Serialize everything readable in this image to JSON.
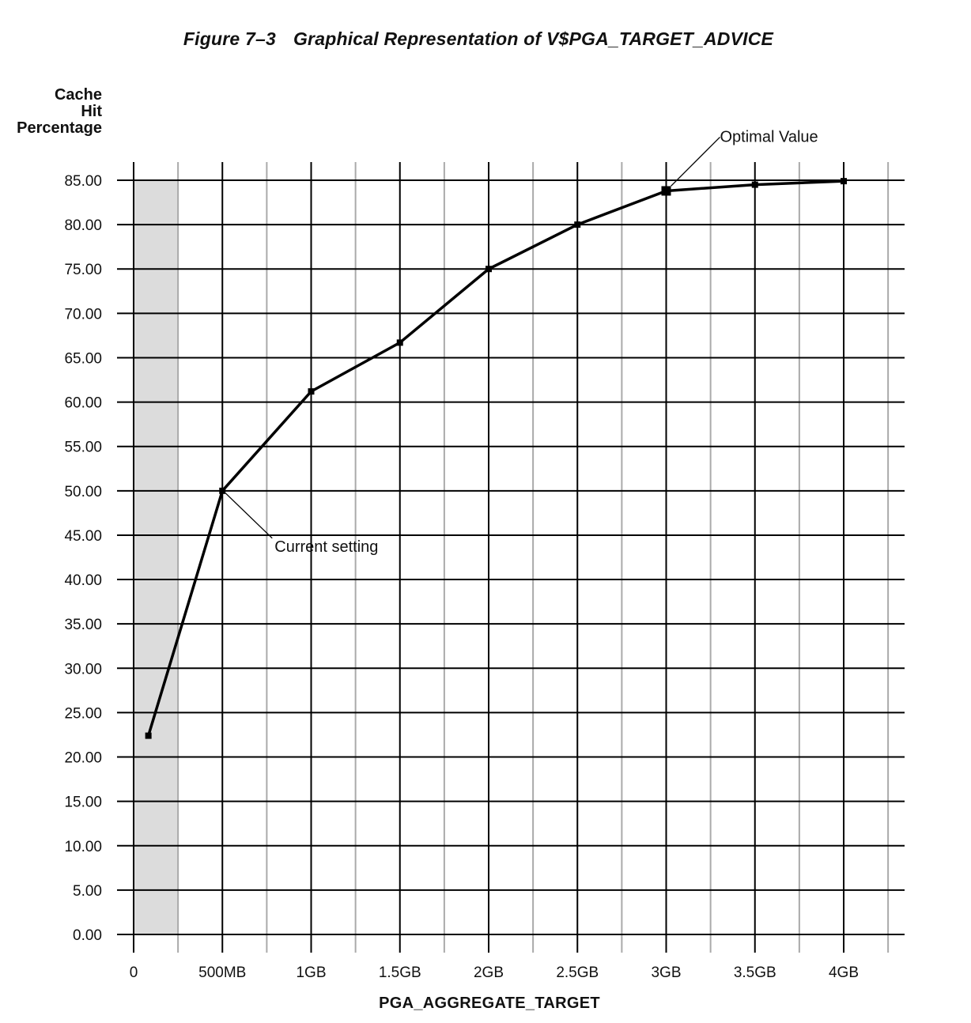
{
  "title": {
    "figure_number": "Figure 7–3",
    "text": "Graphical Representation of V$PGA_TARGET_ADVICE"
  },
  "colors": {
    "line": "#000000",
    "grid_major": "#000000",
    "grid_minor": "#aaaaaa",
    "shade": "#dcdcdc",
    "background": "#ffffff"
  },
  "chart_data": {
    "type": "line",
    "title": "Graphical Representation of V$PGA_TARGET_ADVICE",
    "ylabel_lines": [
      "Cache",
      "Hit",
      "Percentage"
    ],
    "xlabel": "PGA_AGGREGATE_TARGET",
    "x_unit": "MB",
    "xlim": [
      0,
      4300
    ],
    "ylim": [
      0,
      85
    ],
    "x_ticks": [
      {
        "value": 0,
        "label": "0"
      },
      {
        "value": 500,
        "label": "500MB"
      },
      {
        "value": 1000,
        "label": "1GB"
      },
      {
        "value": 1500,
        "label": "1.5GB"
      },
      {
        "value": 2000,
        "label": "2GB"
      },
      {
        "value": 2500,
        "label": "2.5GB"
      },
      {
        "value": 3000,
        "label": "3GB"
      },
      {
        "value": 3500,
        "label": "3.5GB"
      },
      {
        "value": 4000,
        "label": "4GB"
      }
    ],
    "x_minor_grid": [
      250,
      750,
      1250,
      1750,
      2250,
      2750,
      3250,
      3750,
      4250
    ],
    "y_ticks": [
      {
        "value": 0,
        "label": "0.00"
      },
      {
        "value": 5,
        "label": "5.00"
      },
      {
        "value": 10,
        "label": "10.00"
      },
      {
        "value": 15,
        "label": "15.00"
      },
      {
        "value": 20,
        "label": "20.00"
      },
      {
        "value": 25,
        "label": "25.00"
      },
      {
        "value": 30,
        "label": "30.00"
      },
      {
        "value": 35,
        "label": "35.00"
      },
      {
        "value": 40,
        "label": "40.00"
      },
      {
        "value": 45,
        "label": "45.00"
      },
      {
        "value": 50,
        "label": "50.00"
      },
      {
        "value": 55,
        "label": "55.00"
      },
      {
        "value": 60,
        "label": "60.00"
      },
      {
        "value": 65,
        "label": "65.00"
      },
      {
        "value": 70,
        "label": "70.00"
      },
      {
        "value": 75,
        "label": "75.00"
      },
      {
        "value": 80,
        "label": "80.00"
      },
      {
        "value": 85,
        "label": "85.00"
      }
    ],
    "grid": true,
    "shaded_region": {
      "x_from": 0,
      "x_to": 250
    },
    "series": [
      {
        "points": [
          {
            "x": 83,
            "y": 22.4
          },
          {
            "x": 500,
            "y": 50.0
          },
          {
            "x": 1000,
            "y": 61.2
          },
          {
            "x": 1500,
            "y": 66.7
          },
          {
            "x": 2000,
            "y": 75.0
          },
          {
            "x": 2500,
            "y": 80.0
          },
          {
            "x": 3000,
            "y": 83.8
          },
          {
            "x": 3500,
            "y": 84.5
          },
          {
            "x": 4000,
            "y": 84.9
          }
        ]
      }
    ],
    "annotations": [
      {
        "text": "Current setting",
        "x": 500,
        "y": 50.0
      },
      {
        "text": "Optimal Value",
        "x": 3000,
        "y": 83.8
      }
    ]
  }
}
